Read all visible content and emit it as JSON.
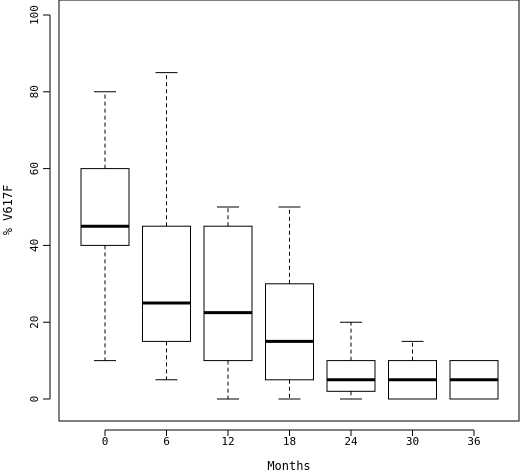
{
  "chart_data": {
    "type": "box",
    "xlabel": "Months",
    "ylabel": "% V617F",
    "ylim": [
      0,
      100
    ],
    "y_ticks": [
      0,
      20,
      40,
      60,
      80,
      100
    ],
    "grid": false,
    "categories": [
      "0",
      "6",
      "12",
      "18",
      "24",
      "30",
      "36"
    ],
    "boxes": [
      {
        "category": "0",
        "min": 10,
        "q1": 40,
        "median": 45,
        "q3": 60,
        "max": 80
      },
      {
        "category": "6",
        "min": 5,
        "q1": 15,
        "median": 25,
        "q3": 45,
        "max": 85
      },
      {
        "category": "12",
        "min": 0,
        "q1": 10,
        "median": 22.5,
        "q3": 45,
        "max": 50
      },
      {
        "category": "18",
        "min": 0,
        "q1": 5,
        "median": 15,
        "q3": 30,
        "max": 50
      },
      {
        "category": "24",
        "min": 0,
        "q1": 2,
        "median": 5,
        "q3": 10,
        "max": 20
      },
      {
        "category": "30",
        "min": 0,
        "q1": 0,
        "median": 5,
        "q3": 10,
        "max": 15
      },
      {
        "category": "36",
        "min": 0,
        "q1": 0,
        "median": 5,
        "q3": 10,
        "max": 10
      }
    ]
  }
}
